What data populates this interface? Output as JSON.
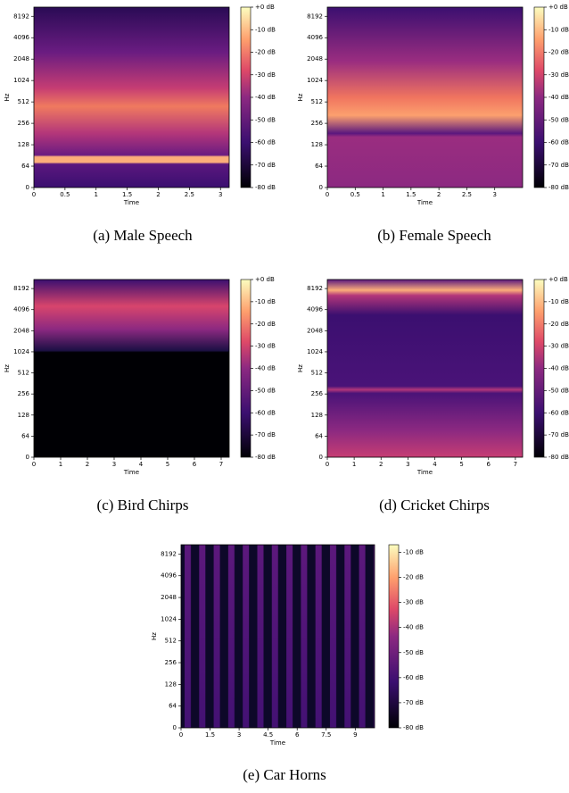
{
  "chart_data": [
    {
      "type": "spectrogram",
      "caption": "(a) Male Speech",
      "xlabel": "Time",
      "ylabel": "Hz",
      "xlim": [
        0,
        3.14
      ],
      "xticks": [
        0,
        0.5,
        1,
        1.5,
        2,
        2.5,
        3
      ],
      "ylim": [
        0,
        11025
      ],
      "yticks": [
        0,
        64,
        128,
        256,
        512,
        1024,
        2048,
        4096,
        8192
      ],
      "clim": [
        -80,
        0
      ],
      "cticks": [
        {
          "value": 0,
          "label": "+0 dB"
        },
        {
          "value": -10,
          "label": "-10 dB"
        },
        {
          "value": -20,
          "label": "-20 dB"
        },
        {
          "value": -30,
          "label": "-30 dB"
        },
        {
          "value": -40,
          "label": "-40 dB"
        },
        {
          "value": -50,
          "label": "-50 dB"
        },
        {
          "value": -60,
          "label": "-60 dB"
        },
        {
          "value": -70,
          "label": "-70 dB"
        },
        {
          "value": -80,
          "label": "-80 dB"
        }
      ]
    },
    {
      "type": "spectrogram",
      "caption": "(b) Female Speech",
      "xlabel": "Time",
      "ylabel": "Hz",
      "xlim": [
        0,
        3.5
      ],
      "xticks": [
        0,
        0.5,
        1,
        1.5,
        2,
        2.5,
        3
      ],
      "ylim": [
        0,
        11025
      ],
      "yticks": [
        0,
        64,
        128,
        256,
        512,
        1024,
        2048,
        4096,
        8192
      ],
      "clim": [
        -80,
        0
      ],
      "cticks": [
        {
          "value": 0,
          "label": "+0 dB"
        },
        {
          "value": -10,
          "label": "-10 dB"
        },
        {
          "value": -20,
          "label": "-20 dB"
        },
        {
          "value": -30,
          "label": "-30 dB"
        },
        {
          "value": -40,
          "label": "-40 dB"
        },
        {
          "value": -50,
          "label": "-50 dB"
        },
        {
          "value": -60,
          "label": "-60 dB"
        },
        {
          "value": -70,
          "label": "-70 dB"
        },
        {
          "value": -80,
          "label": "-80 dB"
        }
      ]
    },
    {
      "type": "spectrogram",
      "caption": "(c) Bird Chirps",
      "xlabel": "Time",
      "ylabel": "Hz",
      "xlim": [
        0,
        7.3
      ],
      "xticks": [
        0,
        1,
        2,
        3,
        4,
        5,
        6,
        7
      ],
      "ylim": [
        0,
        11025
      ],
      "yticks": [
        0,
        64,
        128,
        256,
        512,
        1024,
        2048,
        4096,
        8192
      ],
      "clim": [
        -80,
        0
      ],
      "cticks": [
        {
          "value": 0,
          "label": "+0 dB"
        },
        {
          "value": -10,
          "label": "-10 dB"
        },
        {
          "value": -20,
          "label": "-20 dB"
        },
        {
          "value": -30,
          "label": "-30 dB"
        },
        {
          "value": -40,
          "label": "-40 dB"
        },
        {
          "value": -50,
          "label": "-50 dB"
        },
        {
          "value": -60,
          "label": "-60 dB"
        },
        {
          "value": -70,
          "label": "-70 dB"
        },
        {
          "value": -80,
          "label": "-80 dB"
        }
      ]
    },
    {
      "type": "spectrogram",
      "caption": "(d) Cricket Chirps",
      "xlabel": "Time",
      "ylabel": "Hz",
      "xlim": [
        0,
        7.27
      ],
      "xticks": [
        0,
        1,
        2,
        3,
        4,
        5,
        6,
        7
      ],
      "ylim": [
        0,
        11025
      ],
      "yticks": [
        0,
        64,
        128,
        256,
        512,
        1024,
        2048,
        4096,
        8192
      ],
      "clim": [
        -80,
        0
      ],
      "cticks": [
        {
          "value": 0,
          "label": "+0 dB"
        },
        {
          "value": -10,
          "label": "-10 dB"
        },
        {
          "value": -20,
          "label": "-20 dB"
        },
        {
          "value": -30,
          "label": "-30 dB"
        },
        {
          "value": -40,
          "label": "-40 dB"
        },
        {
          "value": -50,
          "label": "-50 dB"
        },
        {
          "value": -60,
          "label": "-60 dB"
        },
        {
          "value": -70,
          "label": "-70 dB"
        },
        {
          "value": -80,
          "label": "-80 dB"
        }
      ]
    },
    {
      "type": "spectrogram",
      "caption": "(e) Car Horns",
      "xlabel": "Time",
      "ylabel": "Hz",
      "xlim": [
        0,
        10
      ],
      "xticks": [
        0,
        1.5,
        3,
        4.5,
        6,
        7.5,
        9
      ],
      "ylim": [
        0,
        11025
      ],
      "yticks": [
        0,
        64,
        128,
        256,
        512,
        1024,
        2048,
        4096,
        8192
      ],
      "clim": [
        -80,
        -7
      ],
      "cticks": [
        {
          "value": -10,
          "label": "-10 dB"
        },
        {
          "value": -20,
          "label": "-20 dB"
        },
        {
          "value": -30,
          "label": "-30 dB"
        },
        {
          "value": -40,
          "label": "-40 dB"
        },
        {
          "value": -50,
          "label": "-50 dB"
        },
        {
          "value": -60,
          "label": "-60 dB"
        },
        {
          "value": -70,
          "label": "-70 dB"
        },
        {
          "value": -80,
          "label": "-80 dB"
        }
      ]
    }
  ]
}
